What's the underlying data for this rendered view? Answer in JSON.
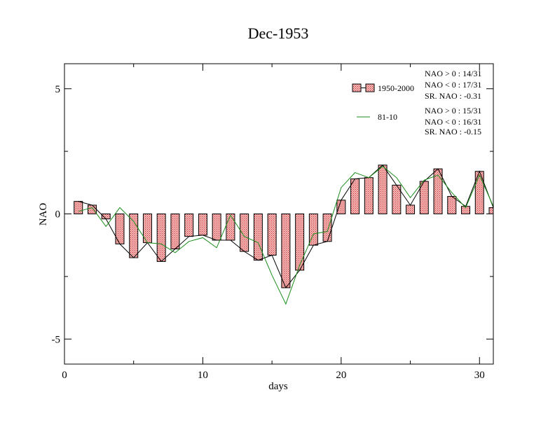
{
  "chart_data": {
    "type": "bar",
    "title": "Dec-1953",
    "xlabel": "days",
    "ylabel": "NAO",
    "xlim": [
      0,
      31
    ],
    "ylim": [
      -6,
      6
    ],
    "xticks": [
      0,
      10,
      20,
      30
    ],
    "xtick_labels": [
      "0",
      "10",
      "20",
      "30"
    ],
    "yticks": [
      -5,
      0,
      5
    ],
    "ytick_labels": [
      "-5",
      "0",
      "5"
    ],
    "grid": false,
    "legend_position": "top-right",
    "series": [
      {
        "name": "1950-2000",
        "style": "bar",
        "color": "#e87a7a",
        "x": [
          1,
          2,
          3,
          4,
          5,
          6,
          7,
          8,
          9,
          10,
          11,
          12,
          13,
          14,
          15,
          16,
          17,
          18,
          19,
          20,
          21,
          22,
          23,
          24,
          25,
          26,
          27,
          28,
          29,
          30,
          31
        ],
        "values": [
          0.5,
          0.35,
          -0.2,
          -1.2,
          -1.75,
          -1.15,
          -1.9,
          -1.4,
          -0.9,
          -0.85,
          -1.05,
          -1.05,
          -1.5,
          -1.85,
          -1.65,
          -2.95,
          -2.25,
          -1.25,
          -1.1,
          0.55,
          1.4,
          1.45,
          1.95,
          1.15,
          0.35,
          1.3,
          1.8,
          0.7,
          0.3,
          1.7,
          0.25
        ]
      },
      {
        "name": "",
        "style": "line",
        "color": "#000000",
        "x": [
          1,
          2,
          3,
          4,
          5,
          6,
          7,
          8,
          9,
          10,
          11,
          12,
          13,
          14,
          15,
          16,
          17,
          18,
          19,
          20,
          21,
          22,
          23,
          24,
          25,
          26,
          27,
          28,
          29,
          30,
          31
        ],
        "values": [
          0.5,
          0.35,
          -0.2,
          -1.2,
          -1.75,
          -1.15,
          -1.9,
          -1.4,
          -0.9,
          -0.85,
          -1.05,
          -1.05,
          -1.5,
          -1.85,
          -1.65,
          -2.95,
          -2.25,
          -1.25,
          -1.1,
          0.55,
          1.4,
          1.45,
          1.95,
          1.15,
          0.35,
          1.3,
          1.8,
          0.7,
          0.3,
          1.7,
          0.25
        ]
      },
      {
        "name": "81-10",
        "style": "line",
        "color": "#1a8c1a",
        "x": [
          1,
          2,
          3,
          4,
          5,
          6,
          7,
          8,
          9,
          10,
          11,
          12,
          13,
          14,
          15,
          16,
          17,
          18,
          19,
          20,
          21,
          22,
          23,
          24,
          25,
          26,
          27,
          28,
          29,
          30,
          31
        ],
        "values": [
          0.1,
          0.25,
          -0.5,
          0.25,
          -0.3,
          -1.15,
          -1.2,
          -1.55,
          -1.1,
          -0.95,
          -1.35,
          -0.05,
          -0.9,
          -1.15,
          -2.45,
          -3.6,
          -2.05,
          -0.8,
          -0.7,
          1.05,
          1.65,
          1.45,
          1.9,
          1.45,
          0.65,
          1.35,
          1.55,
          0.85,
          0.25,
          1.55,
          0.3
        ]
      }
    ],
    "legend": [
      {
        "label": "1950-2000",
        "symbol": "bar"
      },
      {
        "label": "81-10",
        "symbol": "line"
      }
    ],
    "annotations": {
      "group1": [
        "NAO > 0 : 14/31",
        "NAO < 0 : 17/31",
        "SR. NAO : -0.31"
      ],
      "group2": [
        "NAO > 0 : 15/31",
        "NAO < 0 : 16/31",
        "SR. NAO : -0.15"
      ]
    }
  }
}
